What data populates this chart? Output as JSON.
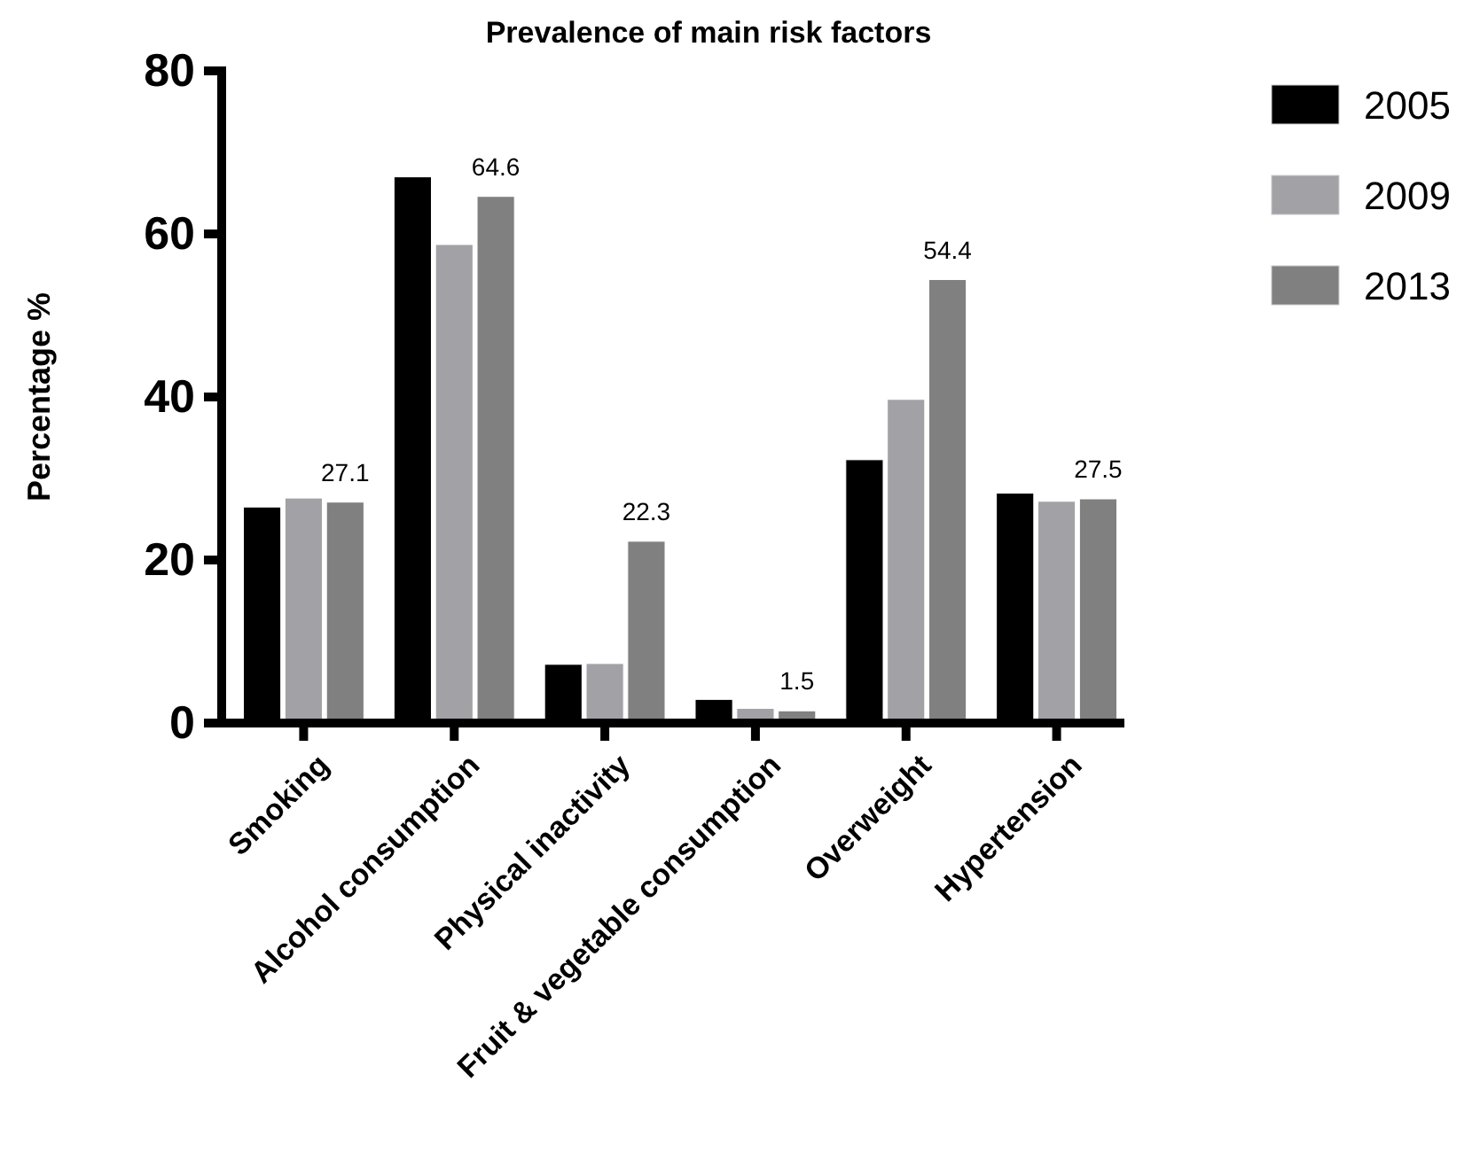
{
  "chart_data": {
    "type": "bar",
    "title": "Prevalence of main risk factors",
    "ylabel": "Percentage %",
    "categories": [
      "Smoking",
      "Alcohol consumption",
      "Physical inactivity",
      "Fruit & vegetable consumption",
      "Overweight",
      "Hypertension"
    ],
    "series": [
      {
        "name": "2005",
        "color": "#000000",
        "values": [
          26.5,
          67.0,
          7.2,
          2.9,
          32.3,
          28.2
        ]
      },
      {
        "name": "2009",
        "color": "#a2a2a6",
        "values": [
          27.6,
          58.7,
          7.3,
          1.8,
          39.7,
          27.2
        ]
      },
      {
        "name": "2013",
        "color": "#808080",
        "values": [
          27.1,
          64.6,
          22.3,
          1.5,
          54.4,
          27.5
        ],
        "value_labels": [
          "27.1",
          "64.6",
          "22.3",
          "1.5",
          "54.4",
          "27.5"
        ]
      }
    ],
    "ylim": [
      0,
      80
    ],
    "yticks": [
      0,
      20,
      40,
      60,
      80
    ],
    "grid": false,
    "legend": "top right"
  }
}
